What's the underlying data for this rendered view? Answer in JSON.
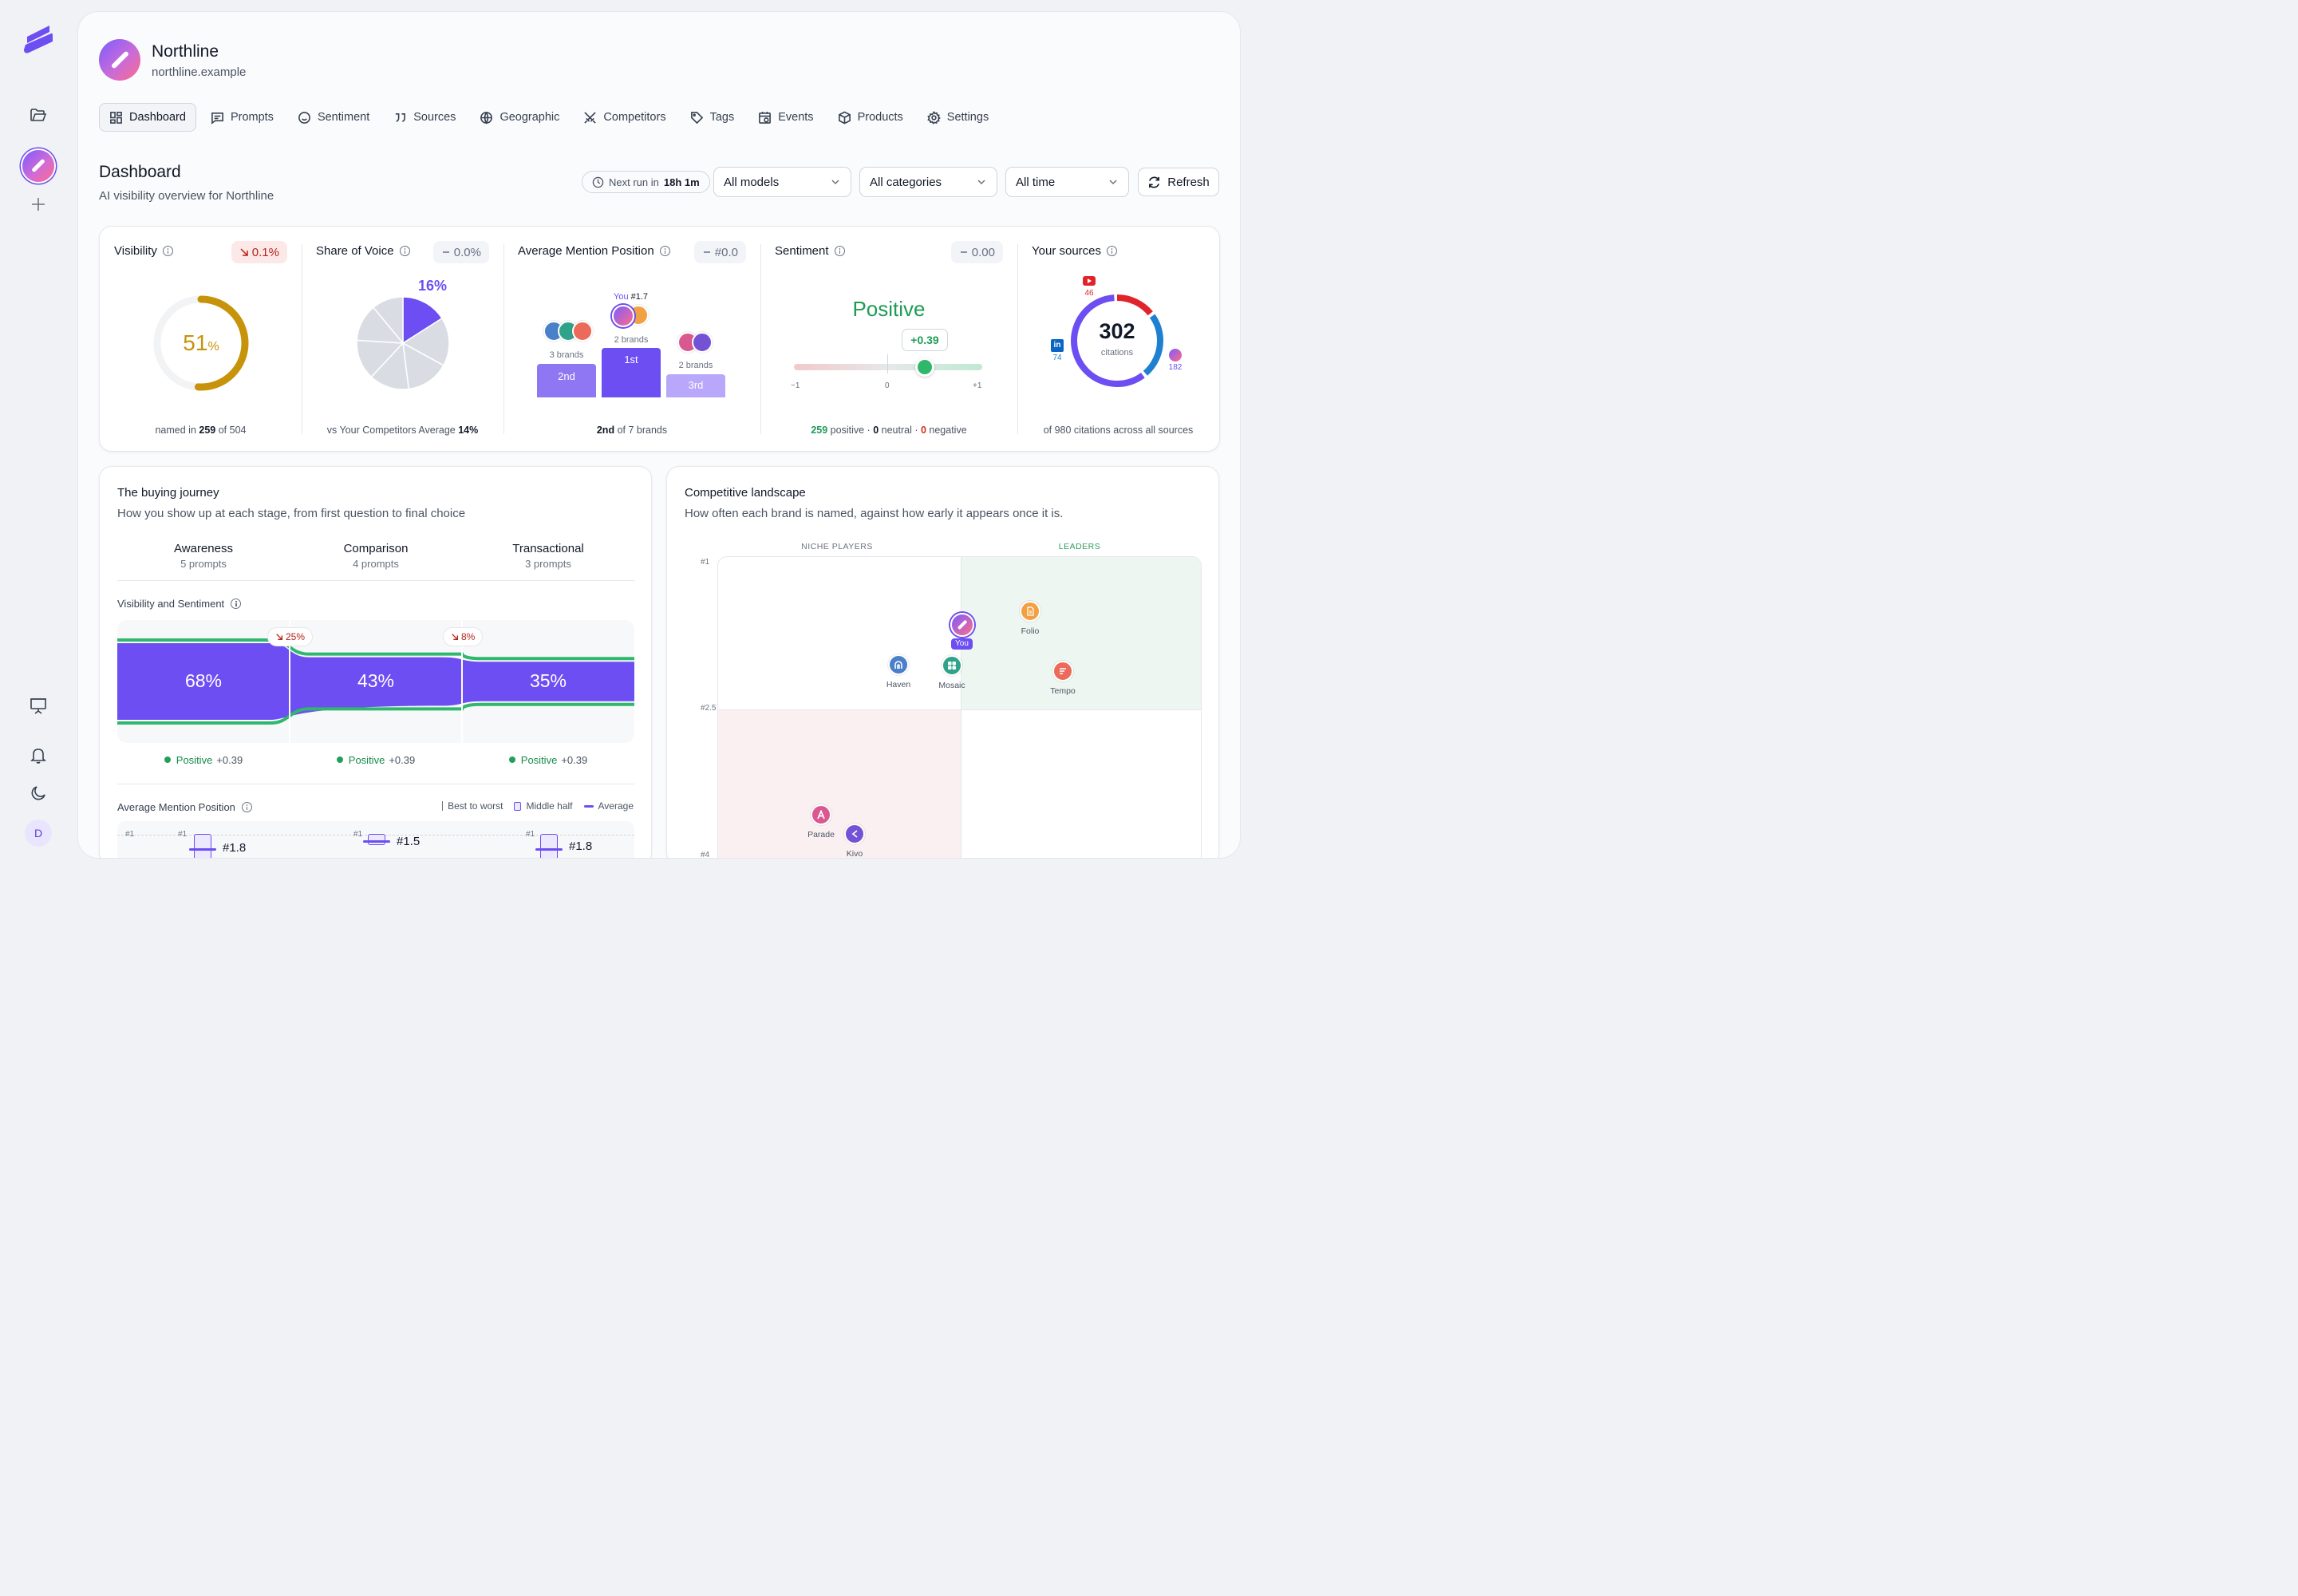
{
  "brand": {
    "name": "Northline",
    "domain": "northline.example"
  },
  "nav_tabs": [
    {
      "label": "Dashboard",
      "icon": "dashboard-icon"
    },
    {
      "label": "Prompts",
      "icon": "message-icon"
    },
    {
      "label": "Sentiment",
      "icon": "smile-icon"
    },
    {
      "label": "Sources",
      "icon": "quote-icon"
    },
    {
      "label": "Geographic",
      "icon": "globe-icon"
    },
    {
      "label": "Competitors",
      "icon": "swords-icon"
    },
    {
      "label": "Tags",
      "icon": "tag-icon"
    },
    {
      "label": "Events",
      "icon": "calendar-icon"
    },
    {
      "label": "Products",
      "icon": "box-icon"
    },
    {
      "label": "Settings",
      "icon": "gear-icon"
    }
  ],
  "rail": {
    "user_initial": "D"
  },
  "header": {
    "title": "Dashboard",
    "subtitle": "AI visibility overview for Northline",
    "next_run_label": "Next run in",
    "next_run_value": "18h 1m",
    "filters": {
      "models": "All models",
      "categories": "All categories",
      "time": "All time"
    },
    "refresh_label": "Refresh"
  },
  "kpis": {
    "visibility": {
      "title": "Visibility",
      "delta": "0.1%",
      "value": "51",
      "unit": "%",
      "fraction": 0.51,
      "foot_pre": "named in",
      "named": "259",
      "foot_mid": "of",
      "total": "504"
    },
    "share_of_voice": {
      "title": "Share of Voice",
      "delta": "0.0%",
      "value": "16%",
      "fraction": 0.16,
      "foot_pre": "vs Your Competitors Average",
      "competitors_avg": "14%"
    },
    "avg_position": {
      "title": "Average Mention Position",
      "delta": "#0.0",
      "you_label": "You",
      "you_value": "#1.7",
      "podium": [
        {
          "rank": "2nd",
          "brands": "3 brands"
        },
        {
          "rank": "1st",
          "brands": "2 brands"
        },
        {
          "rank": "3rd",
          "brands": "2 brands"
        }
      ],
      "foot_rank": "2nd",
      "foot_rest": "of 7 brands"
    },
    "sentiment": {
      "title": "Sentiment",
      "delta": "0.00",
      "label": "Positive",
      "score": "+0.39",
      "score_value": 0.39,
      "scale": [
        "−1",
        "0",
        "+1"
      ],
      "positive": "259",
      "positive_label": "positive ·",
      "neutral": "0",
      "neutral_label": "neutral ·",
      "negative": "0",
      "negative_label": "negative"
    },
    "sources": {
      "title": "Your sources",
      "total": "302",
      "total_label": "citations",
      "youtube": "46",
      "linkedin": "74",
      "own": "182",
      "segments": [
        {
          "name": "youtube",
          "value": 46,
          "color": "#e0242b"
        },
        {
          "name": "linkedin",
          "value": 74,
          "color": "#1f7fd1"
        },
        {
          "name": "own",
          "value": 182,
          "color": "#6c4ef2"
        }
      ],
      "foot": "of 980 citations across all sources"
    }
  },
  "journey": {
    "title": "The buying journey",
    "subtitle": "How you show up at each stage, from first question to final choice",
    "stages": [
      {
        "name": "Awareness",
        "prompts": "5 prompts",
        "visibility": "68%",
        "vis_value": 68,
        "sentiment_label": "Positive",
        "sentiment": "+0.39",
        "avg": "#1.8"
      },
      {
        "name": "Comparison",
        "prompts": "4 prompts",
        "visibility": "43%",
        "vis_value": 43,
        "sentiment_label": "Positive",
        "sentiment": "+0.39",
        "avg": "#1.5"
      },
      {
        "name": "Transactional",
        "prompts": "3 prompts",
        "visibility": "35%",
        "vis_value": 35,
        "sentiment_label": "Positive",
        "sentiment": "+0.39",
        "avg": "#1.8"
      }
    ],
    "drops": [
      "25%",
      "8%"
    ],
    "vis_section": "Visibility and Sentiment",
    "pos_section": "Average Mention Position",
    "legend": {
      "range": "Best to worst",
      "middle": "Middle half",
      "average": "Average"
    },
    "axis_top": "#1"
  },
  "landscape": {
    "title": "Competitive landscape",
    "subtitle": "How often each brand is named, against how early it appears once it is.",
    "quad_left": "NICHE PLAYERS",
    "quad_right": "LEADERS",
    "y_ticks": [
      "#1",
      "#2.5",
      "#4"
    ],
    "you_label": "You",
    "brands": [
      {
        "name": "Folio",
        "color": "#f2a142"
      },
      {
        "name": "Haven",
        "color": "#4a7fc9"
      },
      {
        "name": "Mosaic",
        "color": "#2fa38a"
      },
      {
        "name": "Tempo",
        "color": "#ec6a5a"
      },
      {
        "name": "Parade",
        "color": "#d8588f"
      },
      {
        "name": "Kivo",
        "color": "#7452d6"
      }
    ]
  }
}
